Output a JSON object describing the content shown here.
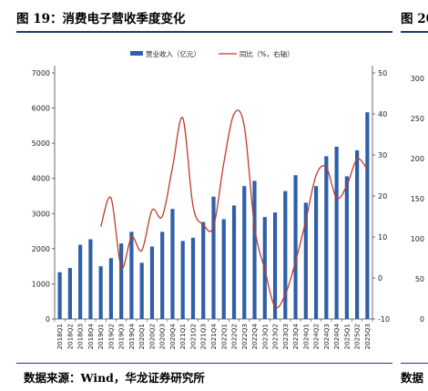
{
  "figure": {
    "title": "图 19：消费电子营收季度变化",
    "source": "数据来源：Wind，华龙证券研究所",
    "right_title": "图 20",
    "right_source": "数据"
  },
  "right_panel": {
    "y_ticks": [
      "300",
      "250",
      "200",
      "150",
      "100",
      "50",
      "0"
    ]
  },
  "colors": {
    "bar": "#2e5fa8",
    "line": "#c0392b",
    "rule": "#1f3a6b"
  },
  "chart_data": {
    "type": "bar",
    "categories": [
      "2018Q1",
      "2018Q2",
      "2018Q3",
      "2018Q4",
      "2019Q1",
      "2019Q2",
      "2019Q3",
      "2019Q4",
      "2020Q1",
      "2020Q2",
      "2020Q3",
      "2020Q4",
      "2021Q1",
      "2021Q2",
      "2021Q3",
      "2021Q4",
      "2022Q1",
      "2022Q2",
      "2022Q3",
      "2022Q4",
      "2023Q1",
      "2023Q2",
      "2023Q3",
      "2023Q4",
      "2024Q1",
      "2024Q2",
      "2024Q3",
      "2024Q4",
      "2025Q1",
      "2025Q2",
      "2025Q3"
    ],
    "series": [
      {
        "name": "营业收入（亿元）",
        "type": "bar",
        "axis": "left",
        "values": [
          1330,
          1450,
          2110,
          2270,
          1500,
          1730,
          2150,
          2480,
          1600,
          2060,
          2480,
          3130,
          2220,
          2310,
          2760,
          3480,
          2840,
          3230,
          3780,
          3930,
          2900,
          3030,
          3640,
          4090,
          3310,
          3780,
          4630,
          4900,
          4060,
          4800,
          5880
        ]
      },
      {
        "name": "同比（%，右轴）",
        "type": "line",
        "axis": "right",
        "values": [
          null,
          null,
          null,
          null,
          12.5,
          19.5,
          2.5,
          10.0,
          6.7,
          16.5,
          15.0,
          27.0,
          39.0,
          17.5,
          13.0,
          12.5,
          28.0,
          40.0,
          37.0,
          12.5,
          2.0,
          -7.0,
          -4.0,
          4.0,
          14.0,
          25.0,
          27.0,
          19.5,
          22.5,
          29.0,
          26.5
        ]
      }
    ],
    "y_left": {
      "min": 0,
      "max": 7000,
      "ticks": [
        0,
        1000,
        2000,
        3000,
        4000,
        5000,
        6000,
        7000
      ]
    },
    "y_right": {
      "min": -10,
      "max": 50,
      "ticks": [
        -10,
        0,
        10,
        20,
        30,
        40,
        50
      ]
    },
    "x_tick_labels": [
      "2018Q1",
      "2018Q2",
      "2018Q3",
      "2018Q4",
      "2019Q1",
      "2019Q2",
      "2019Q3",
      "2019Q4",
      "2020Q1",
      "2020Q2",
      "2020Q3",
      "2020Q4",
      "2021Q1",
      "2021Q2",
      "2021Q3",
      "2021Q4",
      "2022Q1",
      "2022Q2",
      "2022Q3",
      "2022Q4",
      "2023Q1",
      "2023Q2",
      "2023Q3",
      "2023Q4",
      "2024Q1",
      "2024Q2",
      "2024Q3",
      "2024Q4",
      "2025Q1",
      "2025Q2",
      "2025Q3"
    ],
    "legend_position": "top-center",
    "grid": false
  }
}
